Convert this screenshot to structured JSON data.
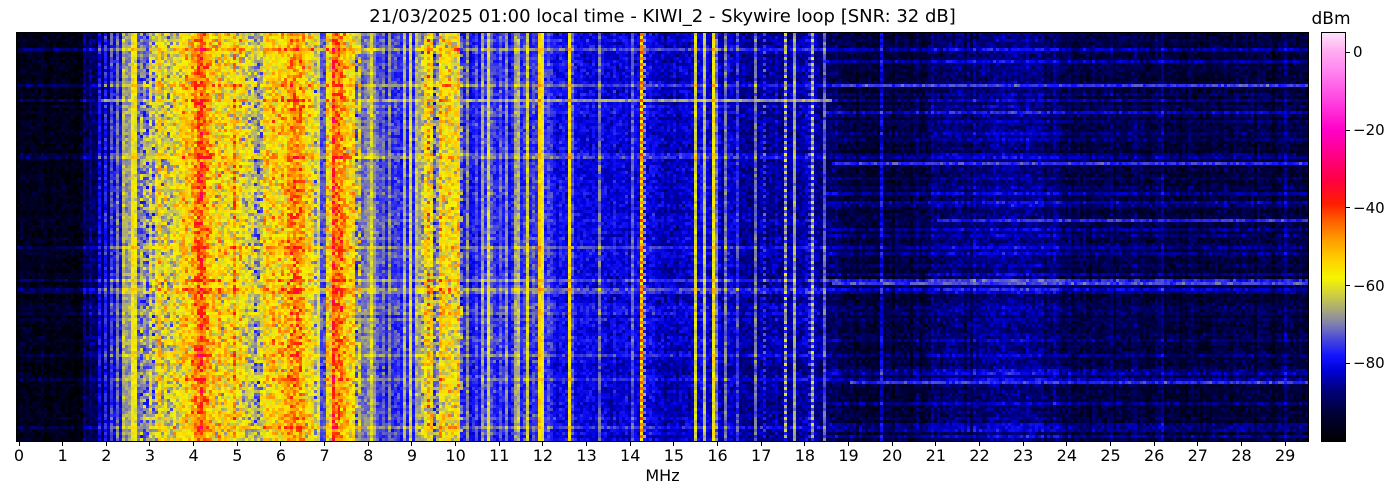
{
  "title": "21/03/2025 01:00 local time - KIWI_2 - Skywire loop [SNR: 32 dB]",
  "station": {
    "datetime_local": "21/03/2025 01:00",
    "receiver": "KIWI_2",
    "antenna": "Skywire loop",
    "snr_db": 32
  },
  "chart_data": {
    "type": "heatmap",
    "title": "21/03/2025 01:00 local time - KIWI_2 - Skywire loop [SNR: 32 dB]",
    "xlabel": "MHz",
    "ylabel": "",
    "x_range_mhz": [
      0,
      29.6
    ],
    "x_ticks": [
      0,
      1,
      2,
      3,
      4,
      5,
      6,
      7,
      8,
      9,
      10,
      11,
      12,
      13,
      14,
      15,
      16,
      17,
      18,
      19,
      20,
      21,
      22,
      23,
      24,
      25,
      26,
      27,
      28,
      29
    ],
    "y_axis": "time (waterfall rows, unlabeled)",
    "grid": false,
    "colorbar_label": "dBm",
    "colorbar_ticks": [
      0,
      -20,
      -40,
      -60,
      -80
    ],
    "value_range_dbm": [
      -100,
      5
    ],
    "colormap_stops": [
      [
        -100,
        "#000000"
      ],
      [
        -93,
        "#000034"
      ],
      [
        -87,
        "#00007a"
      ],
      [
        -82,
        "#0000d4"
      ],
      [
        -78,
        "#1414ff"
      ],
      [
        -74,
        "#4646dc"
      ],
      [
        -70,
        "#7e7eb0"
      ],
      [
        -66,
        "#aaaa78"
      ],
      [
        -62,
        "#d2d23c"
      ],
      [
        -58,
        "#f5f500"
      ],
      [
        -53,
        "#ffcd00"
      ],
      [
        -48,
        "#ff9b00"
      ],
      [
        -43,
        "#ff5a00"
      ],
      [
        -39,
        "#ff1e00"
      ],
      [
        -33,
        "#ff0041"
      ],
      [
        -27,
        "#ff0080"
      ],
      [
        -20,
        "#ff00c8"
      ],
      [
        -12,
        "#ff46e1"
      ],
      [
        -4,
        "#ff8cf0"
      ],
      [
        0,
        "#ffaaf0"
      ],
      [
        5,
        "#ffe1fa"
      ]
    ],
    "baseline_profile_dbm": [
      [
        0,
        -96
      ],
      [
        1.55,
        -96
      ],
      [
        1.62,
        -89
      ],
      [
        2.1,
        -87
      ],
      [
        2.16,
        -81
      ],
      [
        2.52,
        -80
      ],
      [
        2.58,
        -73
      ],
      [
        3.1,
        -70
      ],
      [
        3.18,
        -65
      ],
      [
        5.28,
        -64
      ],
      [
        5.35,
        -68
      ],
      [
        5.55,
        -68
      ],
      [
        5.62,
        -62
      ],
      [
        6.62,
        -62
      ],
      [
        6.68,
        -64
      ],
      [
        6.86,
        -74
      ],
      [
        7.04,
        -74
      ],
      [
        7.08,
        -61
      ],
      [
        7.68,
        -61
      ],
      [
        7.75,
        -71
      ],
      [
        8.2,
        -76
      ],
      [
        9.18,
        -76
      ],
      [
        9.24,
        -66
      ],
      [
        9.45,
        -66
      ],
      [
        9.5,
        -71
      ],
      [
        9.62,
        -71
      ],
      [
        9.68,
        -64
      ],
      [
        10.1,
        -64
      ],
      [
        10.18,
        -78
      ],
      [
        11.5,
        -78
      ],
      [
        11.55,
        -75
      ],
      [
        12.2,
        -75
      ],
      [
        12.3,
        -79
      ],
      [
        13.1,
        -81
      ],
      [
        14.4,
        -82
      ],
      [
        16.3,
        -82
      ],
      [
        16.4,
        -85
      ],
      [
        18.3,
        -85
      ],
      [
        18.55,
        -89
      ],
      [
        19.0,
        -92
      ],
      [
        20.8,
        -92
      ],
      [
        21.0,
        -87
      ],
      [
        23.7,
        -87
      ],
      [
        24.1,
        -91
      ],
      [
        26,
        -92
      ],
      [
        29.6,
        -92
      ]
    ],
    "carriers_mhz_dbm_width_dotted": [
      [
        1.53,
        -74,
        0.015,
        0
      ],
      [
        1.85,
        -78,
        0.012,
        0
      ],
      [
        1.97,
        -76,
        0.012,
        0
      ],
      [
        2.12,
        -74,
        0.015,
        0
      ],
      [
        2.26,
        -70,
        0.015,
        0
      ],
      [
        2.37,
        -62,
        0.02,
        0
      ],
      [
        2.47,
        -66,
        0.015,
        0
      ],
      [
        2.62,
        -57,
        0.05,
        0
      ],
      [
        2.77,
        -66,
        0.02,
        0
      ],
      [
        2.9,
        -63,
        0.02,
        0
      ],
      [
        3.02,
        -61,
        0.02,
        0
      ],
      [
        3.12,
        -59,
        0.025,
        0
      ],
      [
        3.22,
        -56,
        0.04,
        0
      ],
      [
        3.33,
        -58,
        0.025,
        0
      ],
      [
        3.44,
        -61,
        0.02,
        0
      ],
      [
        3.55,
        -57,
        0.03,
        0
      ],
      [
        3.66,
        -57,
        0.03,
        0
      ],
      [
        3.75,
        -54,
        0.05,
        0
      ],
      [
        3.85,
        -52,
        0.04,
        0
      ],
      [
        3.96,
        -50,
        0.035,
        0
      ],
      [
        4.06,
        -46,
        0.035,
        0
      ],
      [
        4.15,
        -41,
        0.05,
        0
      ],
      [
        4.26,
        -45,
        0.04,
        0
      ],
      [
        4.36,
        -51,
        0.03,
        0
      ],
      [
        4.47,
        -54,
        0.03,
        0
      ],
      [
        4.58,
        -52,
        0.03,
        0
      ],
      [
        4.7,
        -55,
        0.03,
        0
      ],
      [
        4.82,
        -53,
        0.03,
        0
      ],
      [
        4.93,
        -48,
        0.035,
        0
      ],
      [
        5.06,
        -54,
        0.03,
        0
      ],
      [
        5.17,
        -57,
        0.03,
        0
      ],
      [
        5.32,
        -60,
        0.025,
        0
      ],
      [
        5.62,
        -55,
        0.035,
        0
      ],
      [
        5.72,
        -53,
        0.035,
        0
      ],
      [
        5.82,
        -52,
        0.04,
        0
      ],
      [
        5.92,
        -54,
        0.03,
        0
      ],
      [
        6.0,
        -51,
        0.04,
        0
      ],
      [
        6.09,
        -54,
        0.03,
        0
      ],
      [
        6.18,
        -49,
        0.05,
        0
      ],
      [
        6.28,
        -46,
        0.07,
        0
      ],
      [
        6.4,
        -47,
        0.06,
        0
      ],
      [
        6.5,
        -51,
        0.04,
        0
      ],
      [
        6.62,
        -54,
        0.035,
        0
      ],
      [
        6.73,
        -56,
        0.03,
        0
      ],
      [
        6.82,
        -57,
        0.025,
        0
      ],
      [
        7.08,
        -54,
        0.03,
        0
      ],
      [
        7.22,
        -36,
        0.022,
        0
      ],
      [
        7.31,
        -45,
        0.04,
        0
      ],
      [
        7.4,
        -47,
        0.04,
        0
      ],
      [
        7.48,
        -50,
        0.035,
        0
      ],
      [
        7.57,
        -52,
        0.03,
        0
      ],
      [
        7.66,
        -55,
        0.03,
        0
      ],
      [
        7.79,
        -61,
        0.02,
        0
      ],
      [
        7.92,
        -65,
        0.02,
        0
      ],
      [
        8.06,
        -59,
        0.025,
        0
      ],
      [
        8.18,
        -63,
        0.02,
        0
      ],
      [
        8.35,
        -71,
        0.015,
        0
      ],
      [
        8.5,
        -69,
        0.015,
        0
      ],
      [
        8.67,
        -71,
        0.015,
        0
      ],
      [
        8.84,
        -65,
        0.02,
        0
      ],
      [
        8.98,
        -61,
        0.025,
        0
      ],
      [
        9.1,
        -63,
        0.02,
        0
      ],
      [
        9.22,
        -60,
        0.025,
        0
      ],
      [
        9.32,
        -58,
        0.025,
        0
      ],
      [
        9.39,
        -47,
        0.02,
        1
      ],
      [
        9.47,
        -56,
        0.02,
        0
      ],
      [
        9.66,
        -53,
        0.03,
        0
      ],
      [
        9.76,
        -54,
        0.03,
        0
      ],
      [
        9.87,
        -56,
        0.025,
        0
      ],
      [
        9.97,
        -55,
        0.03,
        0
      ],
      [
        10.05,
        -53,
        0.03,
        0
      ],
      [
        10.28,
        -69,
        0.015,
        0
      ],
      [
        10.47,
        -71,
        0.015,
        0
      ],
      [
        10.62,
        -67,
        0.018,
        0
      ],
      [
        10.77,
        -61,
        0.02,
        0
      ],
      [
        10.86,
        -63,
        0.018,
        0
      ],
      [
        11.02,
        -70,
        0.015,
        0
      ],
      [
        11.18,
        -68,
        0.015,
        0
      ],
      [
        11.36,
        -64,
        0.018,
        0
      ],
      [
        11.45,
        -65,
        0.018,
        0
      ],
      [
        11.66,
        -61,
        0.02,
        0
      ],
      [
        11.95,
        -52,
        0.03,
        0
      ],
      [
        12.62,
        -56,
        0.025,
        0
      ],
      [
        13.0,
        -76,
        0.012,
        0
      ],
      [
        13.3,
        -71,
        0.015,
        0
      ],
      [
        13.62,
        -73,
        0.013,
        0
      ],
      [
        13.82,
        -71,
        0.013,
        0
      ],
      [
        14.07,
        -69,
        0.015,
        0
      ],
      [
        14.27,
        -43,
        0.02,
        1
      ],
      [
        14.65,
        -77,
        0.012,
        0
      ],
      [
        15.1,
        -79,
        0.01,
        0
      ],
      [
        15.5,
        -61,
        0.02,
        0
      ],
      [
        15.7,
        -64,
        0.018,
        0
      ],
      [
        15.92,
        -57,
        0.025,
        0
      ],
      [
        16.18,
        -71,
        0.013,
        0
      ],
      [
        16.45,
        -75,
        0.012,
        0
      ],
      [
        16.85,
        -68,
        0.015,
        0
      ],
      [
        17.1,
        -65,
        0.015,
        1
      ],
      [
        17.55,
        -63,
        0.015,
        1
      ],
      [
        17.75,
        -66,
        0.013,
        0
      ],
      [
        18.15,
        -59,
        0.02,
        1
      ],
      [
        18.45,
        -72,
        0.012,
        0
      ],
      [
        19.3,
        -84,
        0.01,
        0
      ],
      [
        19.75,
        -82,
        0.012,
        0
      ],
      [
        20.6,
        -85,
        0.01,
        0
      ],
      [
        21.5,
        -81,
        0.012,
        0
      ],
      [
        22.4,
        -84,
        0.01,
        0
      ],
      [
        23.3,
        -84,
        0.01,
        0
      ],
      [
        24.6,
        -86,
        0.01,
        0
      ],
      [
        26.2,
        -86,
        0.01,
        0
      ],
      [
        27.8,
        -86,
        0.01,
        0
      ],
      [
        29.0,
        -85,
        0.01,
        0
      ]
    ],
    "event_rows": [
      {
        "row_frac": 0.164,
        "f_min": 1.9,
        "f_max": 18.6,
        "level_dbm": -67
      },
      {
        "row_frac": 0.127,
        "f_min": 18.6,
        "f_max": 29.6,
        "level_dbm": -75
      },
      {
        "row_frac": 0.315,
        "f_min": 18.6,
        "f_max": 29.6,
        "level_dbm": -76
      },
      {
        "row_frac": 0.46,
        "f_min": 21.0,
        "f_max": 29.6,
        "level_dbm": -77
      },
      {
        "row_frac": 0.617,
        "f_min": 18.6,
        "f_max": 29.6,
        "level_dbm": -74
      },
      {
        "row_frac": 0.86,
        "f_min": 19.0,
        "f_max": 29.6,
        "level_dbm": -76
      }
    ]
  }
}
